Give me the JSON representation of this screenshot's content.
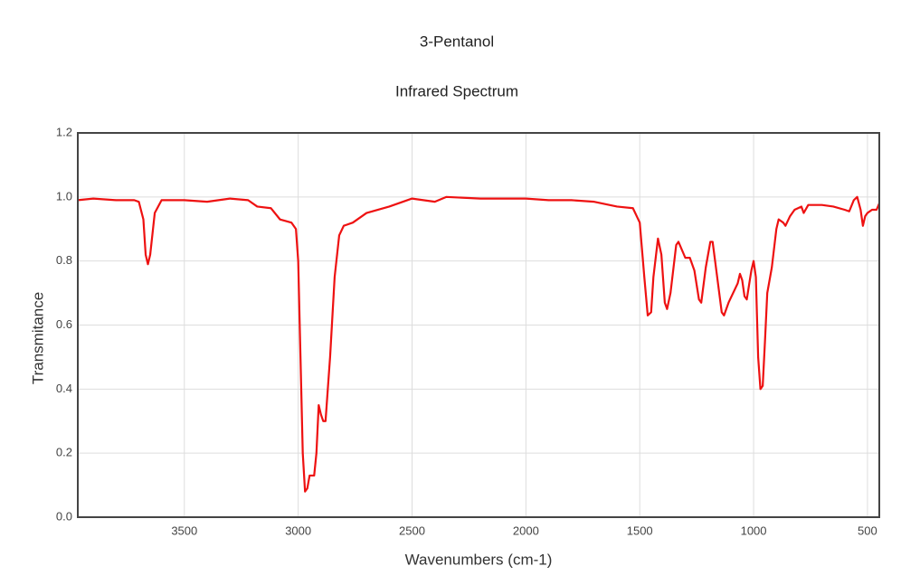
{
  "chart_data": {
    "type": "line",
    "title": "3-Pentanol",
    "subtitle": "Infrared Spectrum",
    "x_label": "Wavenumbers (cm-1)",
    "y_label": "Transmitance",
    "color": "#ee1111",
    "grid": true,
    "xlim": [
      3968,
      448
    ],
    "ylim": [
      0,
      1.2
    ],
    "xticks": [
      3500,
      3000,
      2500,
      2000,
      1500,
      1000,
      500
    ],
    "yticks": [
      {
        "value": 0,
        "label": "0.0"
      },
      0.2,
      0.4,
      0.6,
      0.8,
      {
        "value": 1,
        "label": "1.0"
      },
      1.2
    ],
    "x": [
      3968,
      3900,
      3800,
      3720,
      3700,
      3680,
      3670,
      3660,
      3650,
      3630,
      3600,
      3500,
      3400,
      3300,
      3220,
      3180,
      3120,
      3080,
      3030,
      3010,
      3000,
      2990,
      2980,
      2970,
      2960,
      2950,
      2930,
      2920,
      2910,
      2900,
      2890,
      2880,
      2870,
      2860,
      2840,
      2820,
      2800,
      2760,
      2700,
      2600,
      2500,
      2400,
      2350,
      2200,
      2000,
      1900,
      1800,
      1700,
      1600,
      1530,
      1500,
      1480,
      1465,
      1450,
      1440,
      1420,
      1405,
      1390,
      1380,
      1365,
      1340,
      1330,
      1300,
      1280,
      1260,
      1240,
      1230,
      1210,
      1190,
      1180,
      1160,
      1140,
      1130,
      1110,
      1090,
      1070,
      1060,
      1050,
      1040,
      1030,
      1010,
      1000,
      990,
      980,
      970,
      960,
      950,
      940,
      920,
      900,
      890,
      870,
      860,
      840,
      820,
      790,
      780,
      760,
      700,
      650,
      600,
      580,
      560,
      545,
      530,
      520,
      510,
      500,
      480,
      460,
      448
    ],
    "values": [
      0.99,
      0.995,
      0.99,
      0.99,
      0.985,
      0.93,
      0.82,
      0.79,
      0.82,
      0.95,
      0.99,
      0.99,
      0.985,
      0.995,
      0.99,
      0.97,
      0.965,
      0.93,
      0.92,
      0.9,
      0.8,
      0.5,
      0.2,
      0.08,
      0.09,
      0.13,
      0.13,
      0.2,
      0.35,
      0.32,
      0.3,
      0.3,
      0.4,
      0.5,
      0.75,
      0.88,
      0.91,
      0.92,
      0.95,
      0.97,
      0.995,
      0.985,
      1.0,
      0.995,
      0.995,
      0.99,
      0.99,
      0.985,
      0.97,
      0.965,
      0.92,
      0.75,
      0.63,
      0.64,
      0.75,
      0.87,
      0.82,
      0.67,
      0.65,
      0.7,
      0.85,
      0.86,
      0.81,
      0.81,
      0.77,
      0.68,
      0.67,
      0.78,
      0.86,
      0.86,
      0.75,
      0.64,
      0.63,
      0.67,
      0.7,
      0.73,
      0.76,
      0.74,
      0.69,
      0.68,
      0.77,
      0.8,
      0.75,
      0.5,
      0.4,
      0.41,
      0.55,
      0.7,
      0.78,
      0.9,
      0.93,
      0.92,
      0.91,
      0.94,
      0.96,
      0.97,
      0.95,
      0.975,
      0.975,
      0.97,
      0.96,
      0.955,
      0.99,
      1.0,
      0.96,
      0.91,
      0.94,
      0.95,
      0.96,
      0.96,
      0.98
    ]
  }
}
